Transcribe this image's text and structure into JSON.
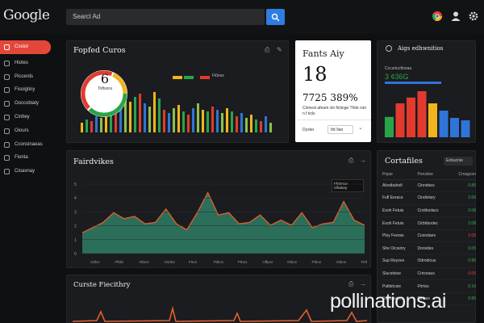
{
  "header": {
    "logo_text": "Google",
    "search_value": "Searcl Ad"
  },
  "sidebar": {
    "items": [
      {
        "label": "Csstor",
        "active": true
      },
      {
        "label": "Hiotes"
      },
      {
        "label": "Piccerds"
      },
      {
        "label": "Fisoigtiny"
      },
      {
        "label": "Ooccobiaty"
      },
      {
        "label": "Cinttey"
      },
      {
        "label": "Oiours"
      },
      {
        "label": "Cconsinaeas"
      },
      {
        "label": "Fionta"
      },
      {
        "label": "Cioaxnay"
      }
    ]
  },
  "top_chart": {
    "title": "Fopfed Curos",
    "legend_label": "Fi0ess",
    "donut_value": "6",
    "donut_label": "Toftsora"
  },
  "stat_card": {
    "title": "Fants Aiy",
    "value": "18",
    "percent": "7725 389%",
    "description": "Cinnest afeam cle fictioge Thite ciet n f.ticls",
    "footer_left": "Dystei",
    "footer_right": "Ifd 9an"
  },
  "right_chart": {
    "title": "Aigs edhwnitios",
    "subtitle": "Cccsrtucfionaa",
    "value": "3 ¢36G",
    "bar_colors": [
      "#2aa44a",
      "#e23b2e",
      "#e23b2e",
      "#e23b2e",
      "#f1b51c",
      "#2f74d8",
      "#2f74d8",
      "#2f74d8"
    ],
    "bar_values": [
      0.42,
      0.7,
      0.82,
      0.95,
      0.7,
      0.55,
      0.4,
      0.35
    ]
  },
  "area_chart": {
    "title": "Fairdvikes",
    "tooltip": "Ffntrmor Cfiiolory",
    "x_labels": [
      "Odlss",
      "Ffldis",
      "Rtbos",
      "Osrtbs",
      "Fttos",
      "Ptbios",
      "Ptbos",
      "Hffpos",
      "Otbos",
      "Ptbos",
      "Otbos",
      "Ftrtlov"
    ],
    "y_labels": [
      "5",
      "4",
      "3",
      "2",
      "1",
      "0"
    ],
    "values": [
      0.28,
      0.35,
      0.42,
      0.55,
      0.47,
      0.5,
      0.4,
      0.42,
      0.6,
      0.4,
      0.32,
      0.55,
      0.82,
      0.52,
      0.55,
      0.4,
      0.42,
      0.52,
      0.38,
      0.45,
      0.38,
      0.55,
      0.35,
      0.4,
      0.42,
      0.7,
      0.45,
      0.38
    ]
  },
  "bottom_chart": {
    "title": "Curste Fiecithry"
  },
  "table_panel": {
    "title": "Cortafiles",
    "dropdown": "Eobucnie",
    "columns": [
      "Popsr",
      "Ponsitoe",
      "Croagcon"
    ],
    "rows": [
      [
        "Alvotbahelt",
        "Cinnebes",
        "0.85"
      ],
      [
        "Fufl Eeraca",
        "Cindivtary",
        "2.66"
      ],
      [
        "Exoh Fetuis",
        "Croldsolacs",
        "3.08"
      ],
      [
        "Exoh Fetuis",
        "Cirbhbodec",
        "2.08"
      ],
      [
        "Ploy Feeras",
        "Cosndaes",
        "2.05"
      ],
      [
        "She Oicsetry",
        "Dorsides",
        "0.05"
      ],
      [
        "Sup Reyoes",
        "Odrodicus",
        "0.96"
      ],
      [
        "Slucetsioe",
        "Crirceaus",
        "0.05"
      ],
      [
        "Pulbtricsie",
        "Fhrtos",
        "0.16"
      ],
      [
        "Sxoinaaires",
        "Dinhes",
        "0.80"
      ]
    ]
  },
  "watermark": "pollinations.ai",
  "colors": {
    "accent": "#e5463a",
    "search": "#2f7de1",
    "green": "#2aa44a",
    "yellow": "#f1b51c",
    "blue": "#2f74d8",
    "area_fill": "#2b6f5b",
    "area_line": "#e2612a"
  }
}
